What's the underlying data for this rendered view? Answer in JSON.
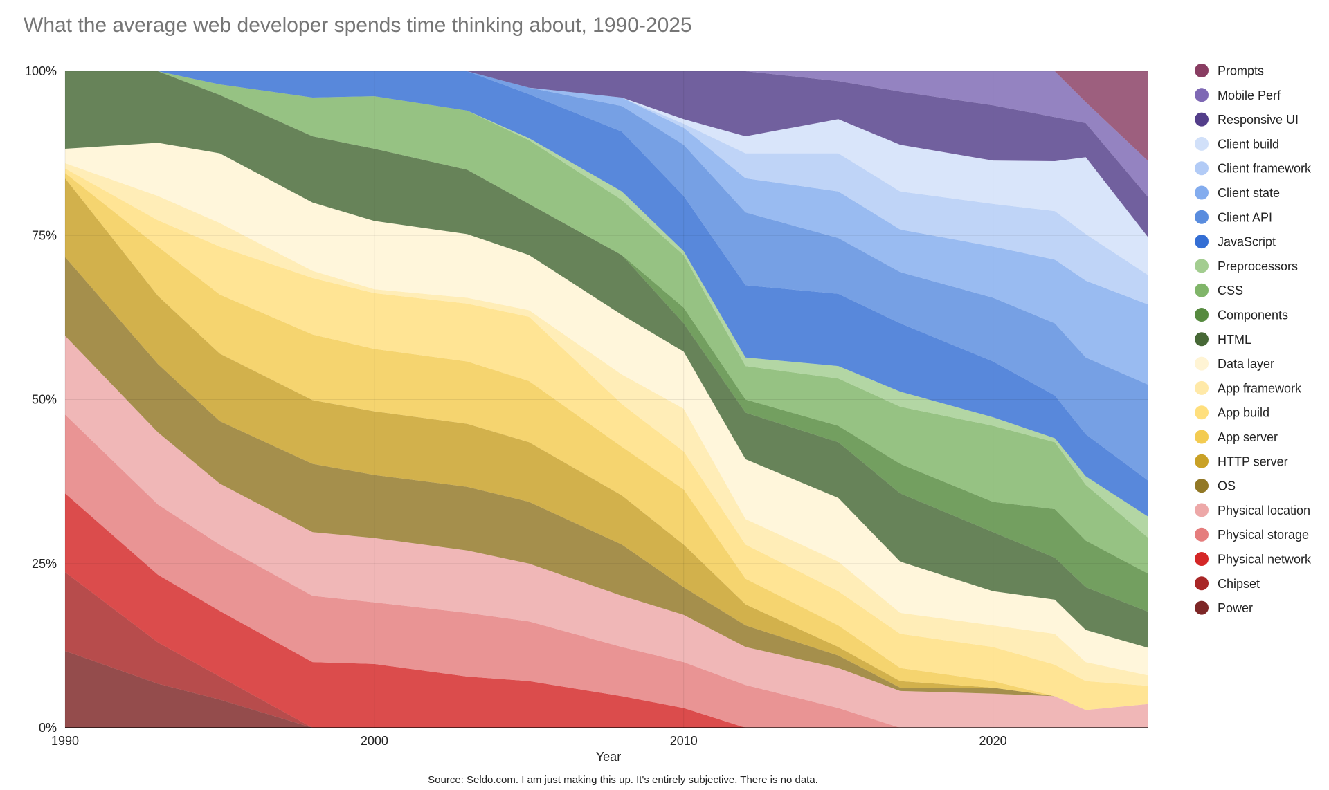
{
  "chart_data": {
    "type": "area",
    "stacked": "percent",
    "title": "What the average web developer spends time thinking about, 1990-2025",
    "xlabel": "Year",
    "ylabel": "",
    "source": "Source: Seldo.com. I am just making this up. It's entirely subjective. There is no data.",
    "xlim": [
      1990,
      2025
    ],
    "ylim": [
      0,
      100
    ],
    "x_ticks": [
      "1990",
      "2000",
      "2010",
      "2020"
    ],
    "x_tick_values": [
      1990,
      2000,
      2010,
      2020
    ],
    "y_ticks": [
      "0%",
      "25%",
      "50%",
      "75%",
      "100%"
    ],
    "y_tick_values": [
      0,
      25,
      50,
      75,
      100
    ],
    "grid": true,
    "legend_position": "right",
    "fill_opacity": 0.7,
    "x": [
      1990,
      1993,
      1995,
      1998,
      2000,
      2003,
      2005,
      2008,
      2010,
      2012,
      2015,
      2017,
      2020,
      2022,
      2023,
      2025
    ],
    "series": [
      {
        "name": "Power",
        "color": "#660000",
        "values": [
          11.7,
          6.7,
          4.3,
          0,
          0,
          0,
          0,
          0,
          0,
          0,
          0,
          0,
          0,
          0,
          0,
          0
        ]
      },
      {
        "name": "Chipset",
        "color": "#990000",
        "values": [
          12,
          6.3,
          3.5,
          0,
          0,
          0,
          0,
          0,
          0,
          0,
          0,
          0,
          0,
          0,
          0,
          0
        ]
      },
      {
        "name": "Physical network",
        "color": "#cc0000",
        "values": [
          12,
          10.3,
          10,
          10,
          9.7,
          7.8,
          7.1,
          4.8,
          3,
          0,
          0,
          0,
          0,
          0,
          0,
          0
        ]
      },
      {
        "name": "Physical storage",
        "color": "#e06666",
        "values": [
          12,
          10.7,
          10.1,
          10.1,
          9.4,
          9.7,
          9.1,
          7.5,
          7,
          6.5,
          3,
          0,
          0,
          0,
          0,
          0
        ]
      },
      {
        "name": "Physical location",
        "color": "#ea9999",
        "values": [
          12,
          11,
          9.3,
          9.7,
          9.8,
          9.5,
          8.8,
          7.8,
          7.2,
          5.8,
          6.1,
          5.6,
          5.2,
          4.8,
          2.7,
          3.6
        ]
      },
      {
        "name": "OS",
        "color": "#7f6000",
        "values": [
          12,
          10.4,
          9.5,
          10.4,
          9.6,
          9.7,
          9.4,
          7.8,
          4.2,
          3.3,
          1.9,
          0.5,
          0.9,
          0,
          0,
          0
        ]
      },
      {
        "name": "HTTP server",
        "color": "#bf9000",
        "values": [
          12,
          10.4,
          10.3,
          9.7,
          9.7,
          9.6,
          9.1,
          7.5,
          6.5,
          3.2,
          1.3,
          1,
          0,
          0,
          0,
          0
        ]
      },
      {
        "name": "App server",
        "color": "#f1c232",
        "values": [
          0.8,
          7.5,
          9,
          10,
          9.5,
          9.5,
          9.3,
          7.4,
          8.4,
          3.9,
          3.3,
          2,
          1,
          0,
          0,
          0
        ]
      },
      {
        "name": "App build",
        "color": "#ffd966",
        "values": [
          0.7,
          4,
          7.3,
          8.6,
          8.5,
          8.8,
          9.8,
          6.5,
          5.8,
          5.2,
          5.2,
          5.2,
          5.2,
          4.8,
          4.4,
          2.8
        ]
      },
      {
        "name": "App framework",
        "color": "#ffe599",
        "values": [
          0.8,
          3.7,
          3.6,
          1.1,
          0.6,
          0.9,
          1,
          4.5,
          6.5,
          3.9,
          4.5,
          3.2,
          3.3,
          4.7,
          2.9,
          1.6
        ]
      },
      {
        "name": "Data layer",
        "color": "#fff2cc",
        "values": [
          2.2,
          8.1,
          10.6,
          10.4,
          10.4,
          9.7,
          8.4,
          9.1,
          8.7,
          9.1,
          9.7,
          7.8,
          5.2,
          5.2,
          4.9,
          4.2
        ]
      },
      {
        "name": "HTML",
        "color": "#274e13",
        "values": [
          11.8,
          10.9,
          8.9,
          10.1,
          11,
          9.8,
          7.8,
          9.1,
          4.3,
          7.1,
          8.5,
          10.4,
          9,
          6.4,
          6.5,
          5.5
        ]
      },
      {
        "name": "Components",
        "color": "#38761d",
        "values": [
          0,
          0,
          0,
          0,
          0,
          0,
          0,
          0,
          2.4,
          2,
          2.5,
          4.5,
          4.6,
          7.4,
          7.1,
          5.8
        ]
      },
      {
        "name": "CSS",
        "color": "#6aa84f",
        "values": [
          0,
          0,
          1.6,
          5.9,
          8,
          9,
          9.7,
          8.4,
          8,
          5.1,
          7.2,
          8.7,
          11.6,
          10.2,
          8.5,
          5.5
        ]
      },
      {
        "name": "Preprocessors",
        "color": "#93c47d",
        "values": [
          0,
          0,
          0,
          0,
          0,
          0,
          0.3,
          1.3,
          0.6,
          1.3,
          1.9,
          2.3,
          1.3,
          0.6,
          1.3,
          3.2
        ]
      },
      {
        "name": "JavaScript",
        "color": "#1155cc",
        "values": [
          0,
          0,
          2,
          4,
          3.8,
          6,
          6.7,
          9.1,
          8.4,
          11,
          11,
          10.4,
          8.5,
          6.5,
          6.4,
          5.5
        ]
      },
      {
        "name": "Client API",
        "color": "#3c78d8",
        "values": [
          0,
          0,
          0,
          0,
          0,
          0,
          1,
          3.9,
          7.8,
          11.1,
          8.5,
          7.8,
          9.7,
          11,
          11.7,
          14.6
        ]
      },
      {
        "name": "Client state",
        "color": "#6d9eeb",
        "values": [
          0,
          0,
          0,
          0,
          0,
          0,
          0,
          1.3,
          2.6,
          5.2,
          7.1,
          6.5,
          7.8,
          9.7,
          11.7,
          12.2
        ]
      },
      {
        "name": "Client framework",
        "color": "#a4c2f4",
        "values": [
          0,
          0,
          0,
          0,
          0,
          0,
          0,
          0,
          0.6,
          3.8,
          5.8,
          5.8,
          6.5,
          7.4,
          7.1,
          4.5
        ]
      },
      {
        "name": "Client build",
        "color": "#c9daf8",
        "values": [
          0,
          0,
          0,
          0,
          0,
          0,
          0,
          0,
          0.7,
          2.6,
          5.2,
          7.1,
          6.6,
          7.6,
          11.7,
          5.8
        ]
      },
      {
        "name": "Responsive UI",
        "color": "#351c75",
        "values": [
          0,
          0,
          0,
          0,
          0,
          0,
          2.5,
          4,
          7.3,
          9.9,
          5.8,
          8.1,
          8.4,
          6.7,
          5.2,
          6.1
        ]
      },
      {
        "name": "Mobile Perf",
        "color": "#674ea7",
        "values": [
          0,
          0,
          0,
          0,
          0,
          0,
          0,
          0,
          0,
          0,
          1.5,
          3.1,
          5.2,
          7,
          3.2,
          5.5
        ]
      },
      {
        "name": "Prompts",
        "color": "#741b47",
        "values": [
          0,
          0,
          0,
          0,
          0,
          0,
          0,
          0,
          0,
          0,
          0,
          0,
          0,
          0,
          4.7,
          13.6
        ]
      }
    ]
  }
}
